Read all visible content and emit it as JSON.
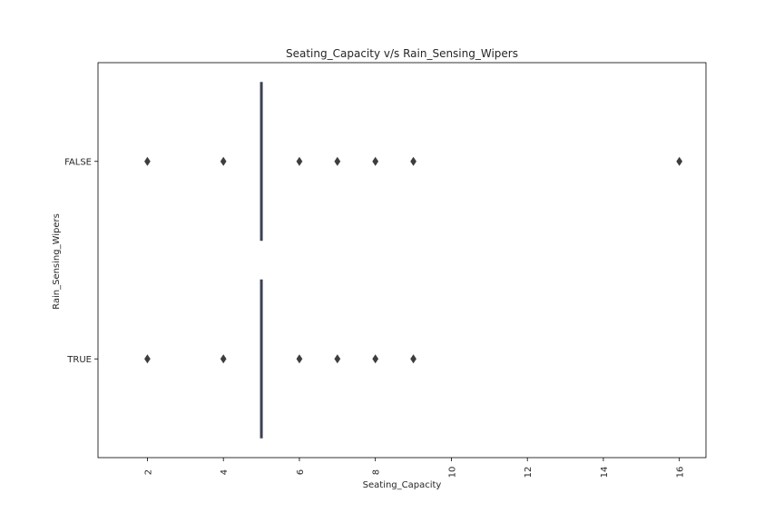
{
  "chart_data": {
    "type": "box",
    "orientation": "horizontal",
    "title": "Seating_Capacity v/s Rain_Sensing_Wipers",
    "xlabel": "Seating_Capacity",
    "ylabel": "Rain_Sensing_Wipers",
    "xlim": [
      0.7,
      16.7
    ],
    "xticks": [
      2,
      4,
      6,
      8,
      10,
      12,
      14,
      16
    ],
    "categories": [
      "FALSE",
      "TRUE"
    ],
    "series": [
      {
        "category": "FALSE",
        "q1": 5,
        "median": 5,
        "q3": 5,
        "whisker_low": 5,
        "whisker_high": 5,
        "outliers": [
          2,
          4,
          6,
          7,
          8,
          9,
          16
        ]
      },
      {
        "category": "TRUE",
        "q1": 5,
        "median": 5,
        "q3": 5,
        "whisker_low": 5,
        "whisker_high": 5,
        "outliers": [
          2,
          4,
          6,
          7,
          8,
          9
        ]
      }
    ],
    "grid": false,
    "colors": {
      "box": "#3b4252",
      "outlier": "#3d3d3d",
      "axis": "#000000",
      "text": "#262626"
    }
  }
}
